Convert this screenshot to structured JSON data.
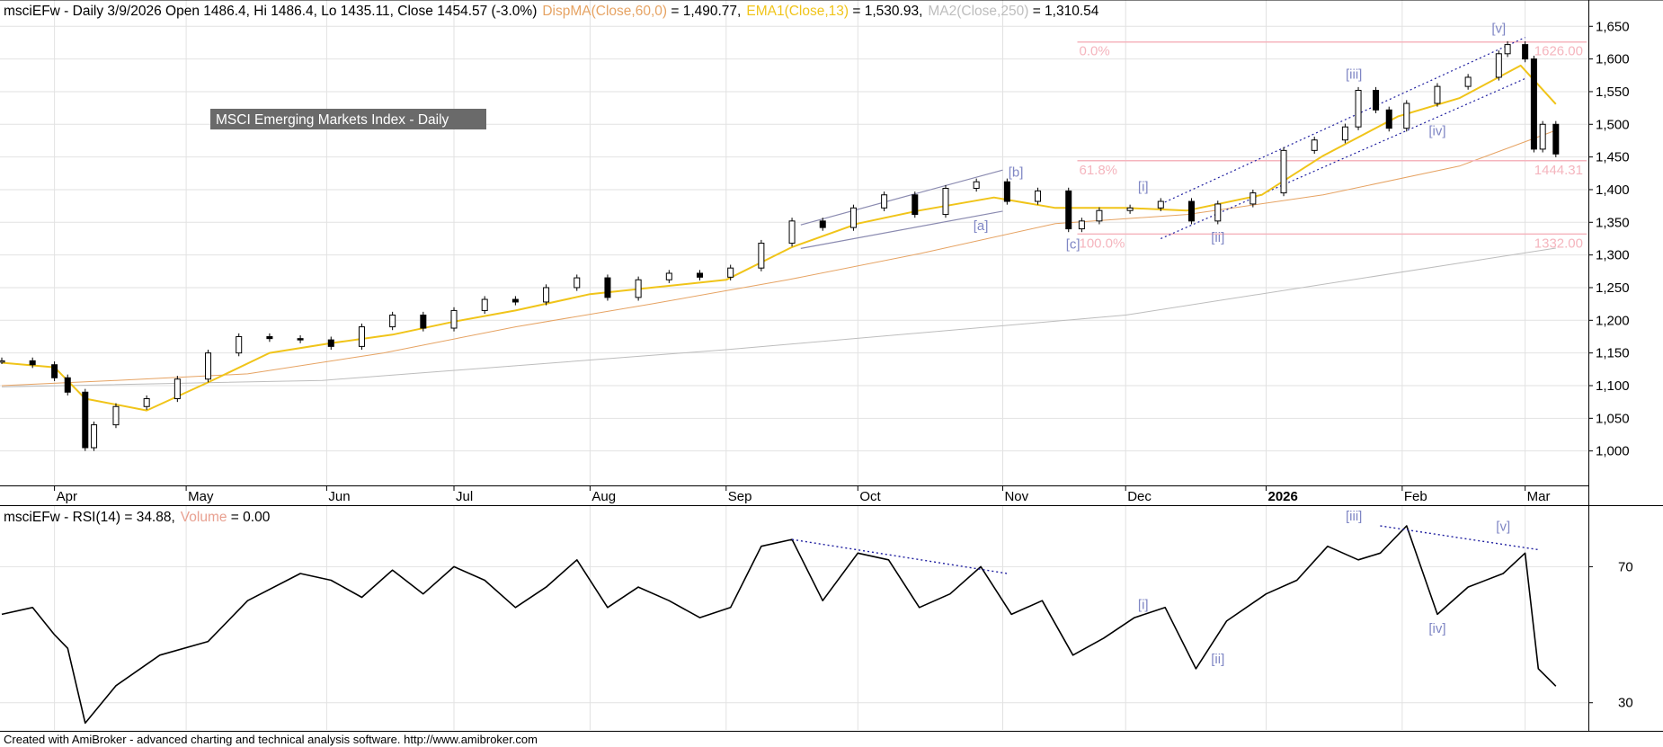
{
  "colors": {
    "background": "#ffffff",
    "grid": "#e2e2e2",
    "text": "#000000",
    "price_ma_disp": "#e6a363",
    "ema13": "#f0c419",
    "ma250": "#bdbdbd",
    "fib": "#f5b5be",
    "fib_text": "#f5b5be",
    "wave_labels": "#7f86c4",
    "trendline": "#2020a0",
    "channel": "#8a8ab0",
    "rsi_line": "#000000",
    "volume_text": "#e8a090",
    "badge_bg": "#6a6a6a",
    "badge_text": "#ffffff"
  },
  "header": {
    "price_prefix": "msciEFw - Daily 3/9/2026 Open 1486.4, Hi 1486.4, Lo 1435.11, Close 1454.57 (-3.0%)",
    "disp_ma_label": "DispMA(Close,60,0)",
    "disp_ma_value": " = 1,490.77,",
    "ema_label": "EMA1(Close,13)",
    "ema_value": " = 1,530.93,",
    "ma2_label": "MA2(Close,250)",
    "ma2_value": " = 1,310.54"
  },
  "badge": {
    "text": "MSCI Emerging Markets Index - Daily"
  },
  "rsi_header": {
    "prefix": "msciEFw - RSI(14) = 34.88,",
    "volume_label": "Volume",
    "volume_value": " = 0.00"
  },
  "footer": {
    "text": "Created with AmiBroker - advanced charting and technical analysis software. http://www.amibroker.com"
  },
  "chart_data": [
    {
      "type": "line",
      "panel": "price",
      "y_scale": "linear",
      "ylim": [
        950,
        1660
      ],
      "y_ticks": [
        1000,
        1050,
        1100,
        1150,
        1200,
        1250,
        1300,
        1350,
        1400,
        1450,
        1500,
        1550,
        1600,
        1650
      ],
      "y_tick_labels": [
        "1,000",
        "1,050",
        "1,100",
        "1,150",
        "1,200",
        "1,250",
        "1,300",
        "1,350",
        "1,400",
        "1,450",
        "1,500",
        "1,550",
        "1,600",
        "1,650"
      ],
      "x_range": [
        "2025-03-20",
        "2026-03-16"
      ],
      "x_tick_dates": [
        "2025-04-01",
        "2025-05-01",
        "2025-06-02",
        "2025-07-01",
        "2025-08-01",
        "2025-09-01",
        "2025-10-01",
        "2025-11-03",
        "2025-12-01",
        "2026-01-02",
        "2026-02-02",
        "2026-03-02"
      ],
      "x_tick_labels": [
        "Apr",
        "May",
        "Jun",
        "Jul",
        "Aug",
        "Sep",
        "Oct",
        "Nov",
        "Dec",
        "2026",
        "Feb",
        "Mar"
      ],
      "grid": true,
      "series": [
        {
          "name": "msciEFw",
          "style": "candlestick",
          "dates": [
            "2025-03-20",
            "2025-03-27",
            "2025-04-01",
            "2025-04-04",
            "2025-04-08",
            "2025-04-10",
            "2025-04-15",
            "2025-04-22",
            "2025-04-29",
            "2025-05-06",
            "2025-05-13",
            "2025-05-20",
            "2025-05-27",
            "2025-06-03",
            "2025-06-10",
            "2025-06-17",
            "2025-06-24",
            "2025-07-01",
            "2025-07-08",
            "2025-07-15",
            "2025-07-22",
            "2025-07-29",
            "2025-08-05",
            "2025-08-12",
            "2025-08-19",
            "2025-08-26",
            "2025-09-02",
            "2025-09-09",
            "2025-09-16",
            "2025-09-23",
            "2025-09-30",
            "2025-10-07",
            "2025-10-14",
            "2025-10-21",
            "2025-10-28",
            "2025-11-04",
            "2025-11-11",
            "2025-11-18",
            "2025-11-21",
            "2025-11-25",
            "2025-12-02",
            "2025-12-09",
            "2025-12-16",
            "2025-12-22",
            "2025-12-30",
            "2026-01-06",
            "2026-01-13",
            "2026-01-20",
            "2026-01-23",
            "2026-01-27",
            "2026-01-30",
            "2026-02-03",
            "2026-02-10",
            "2026-02-17",
            "2026-02-24",
            "2026-02-26",
            "2026-03-02",
            "2026-03-04",
            "2026-03-06",
            "2026-03-09"
          ],
          "close": [
            1138,
            1132,
            1112,
            1090,
            1005,
            1040,
            1068,
            1080,
            1110,
            1150,
            1175,
            1172,
            1170,
            1160,
            1190,
            1208,
            1188,
            1215,
            1232,
            1228,
            1250,
            1265,
            1235,
            1262,
            1272,
            1266,
            1280,
            1318,
            1352,
            1342,
            1372,
            1392,
            1362,
            1402,
            1412,
            1382,
            1398,
            1340,
            1352,
            1368,
            1372,
            1382,
            1352,
            1378,
            1395,
            1460,
            1476,
            1496,
            1552,
            1522,
            1494,
            1532,
            1558,
            1572,
            1608,
            1622,
            1600,
            1462,
            1500,
            1454.57
          ]
        },
        {
          "name": "DispMA(Close,60,0)",
          "dates": [
            "2025-03-20",
            "2025-04-15",
            "2025-05-15",
            "2025-06-15",
            "2025-07-15",
            "2025-08-15",
            "2025-09-15",
            "2025-10-15",
            "2025-11-15",
            "2025-12-15",
            "2026-01-15",
            "2026-02-15",
            "2026-03-09"
          ],
          "values": [
            1100,
            1108,
            1118,
            1150,
            1190,
            1225,
            1262,
            1302,
            1348,
            1362,
            1392,
            1436,
            1490.77
          ]
        },
        {
          "name": "EMA1(Close,13)",
          "dates": [
            "2025-03-20",
            "2025-04-01",
            "2025-04-08",
            "2025-04-22",
            "2025-05-06",
            "2025-05-20",
            "2025-06-03",
            "2025-06-17",
            "2025-07-01",
            "2025-07-15",
            "2025-08-01",
            "2025-08-15",
            "2025-09-01",
            "2025-09-16",
            "2025-10-01",
            "2025-10-15",
            "2025-11-01",
            "2025-11-15",
            "2025-12-01",
            "2025-12-15",
            "2026-01-01",
            "2026-01-15",
            "2026-02-01",
            "2026-02-15",
            "2026-03-01",
            "2026-03-09"
          ],
          "values": [
            1135,
            1128,
            1080,
            1062,
            1105,
            1150,
            1165,
            1178,
            1198,
            1215,
            1240,
            1250,
            1262,
            1312,
            1348,
            1368,
            1388,
            1372,
            1372,
            1368,
            1392,
            1452,
            1512,
            1540,
            1590,
            1530.93
          ]
        },
        {
          "name": "MA2(Close,250)",
          "dates": [
            "2025-03-20",
            "2025-06-01",
            "2025-09-01",
            "2025-12-01",
            "2026-03-09"
          ],
          "values": [
            1098,
            1108,
            1155,
            1208,
            1310.54
          ]
        }
      ],
      "fibonacci": [
        {
          "level_label": "0.0%",
          "price_label": "1626.00",
          "price": 1626
        },
        {
          "level_label": "61.8%",
          "price_label": "1444.31",
          "price": 1444.31
        },
        {
          "level_label": "100.0%",
          "price_label": "1332.00",
          "price": 1332
        }
      ],
      "annotations": [
        {
          "text": "[a]",
          "date": "2025-10-29",
          "price": 1338
        },
        {
          "text": "[b]",
          "date": "2025-11-06",
          "price": 1420
        },
        {
          "text": "[c]",
          "date": "2025-11-19",
          "price": 1310
        },
        {
          "text": "[i]",
          "date": "2025-12-05",
          "price": 1398
        },
        {
          "text": "[ii]",
          "date": "2025-12-22",
          "price": 1320
        },
        {
          "text": "[iii]",
          "date": "2026-01-22",
          "price": 1570
        },
        {
          "text": "[iv]",
          "date": "2026-02-10",
          "price": 1483
        },
        {
          "text": "[v]",
          "date": "2026-02-24",
          "price": 1640
        }
      ],
      "trendlines": [
        {
          "style": "solid",
          "from": [
            "2025-09-18",
            1310
          ],
          "to": [
            "2025-11-03",
            1367
          ]
        },
        {
          "style": "solid",
          "from": [
            "2025-09-18",
            1346
          ],
          "to": [
            "2025-11-03",
            1430
          ]
        },
        {
          "style": "dotted",
          "from": [
            "2025-12-09",
            1325
          ],
          "to": [
            "2026-03-02",
            1570
          ]
        },
        {
          "style": "dotted",
          "from": [
            "2025-12-09",
            1378
          ],
          "to": [
            "2026-03-02",
            1633
          ]
        }
      ]
    },
    {
      "type": "line",
      "panel": "rsi",
      "name": "RSI(14)",
      "ylim": [
        22,
        82
      ],
      "y_ticks": [
        30,
        70
      ],
      "y_tick_labels": [
        "30",
        "70"
      ],
      "grid": true,
      "dates": [
        "2025-03-20",
        "2025-03-27",
        "2025-04-01",
        "2025-04-04",
        "2025-04-08",
        "2025-04-15",
        "2025-04-25",
        "2025-05-06",
        "2025-05-15",
        "2025-05-27",
        "2025-06-03",
        "2025-06-10",
        "2025-06-17",
        "2025-06-24",
        "2025-07-01",
        "2025-07-08",
        "2025-07-15",
        "2025-07-22",
        "2025-07-29",
        "2025-08-05",
        "2025-08-12",
        "2025-08-19",
        "2025-08-26",
        "2025-09-02",
        "2025-09-09",
        "2025-09-16",
        "2025-09-23",
        "2025-10-01",
        "2025-10-08",
        "2025-10-15",
        "2025-10-22",
        "2025-10-29",
        "2025-11-05",
        "2025-11-12",
        "2025-11-19",
        "2025-11-26",
        "2025-12-03",
        "2025-12-10",
        "2025-12-17",
        "2025-12-24",
        "2026-01-02",
        "2026-01-09",
        "2026-01-16",
        "2026-01-23",
        "2026-01-28",
        "2026-02-03",
        "2026-02-10",
        "2026-02-17",
        "2026-02-25",
        "2026-03-02",
        "2026-03-05",
        "2026-03-09"
      ],
      "values": [
        56,
        58,
        50,
        46,
        24,
        35,
        44,
        48,
        60,
        68,
        66,
        61,
        69,
        62,
        70,
        66,
        58,
        64,
        72,
        58,
        64,
        60,
        55,
        58,
        76,
        78,
        60,
        74,
        72,
        58,
        62,
        70,
        56,
        60,
        44,
        49,
        55,
        58,
        40,
        54,
        62,
        66,
        76,
        72,
        74,
        82,
        56,
        64,
        68,
        74,
        40,
        34.88
      ],
      "annotations": [
        {
          "text": "[i]",
          "date": "2025-12-05",
          "value": 56
        },
        {
          "text": "[ii]",
          "date": "2025-12-22",
          "value": 40
        },
        {
          "text": "[iii]",
          "date": "2026-01-22",
          "value": 82
        },
        {
          "text": "[iv]",
          "date": "2026-02-10",
          "value": 49
        },
        {
          "text": "[v]",
          "date": "2026-02-25",
          "value": 79
        }
      ],
      "trendlines": [
        {
          "style": "dotted",
          "from": [
            "2025-09-16",
            78
          ],
          "to": [
            "2025-11-04",
            68
          ]
        },
        {
          "style": "dotted",
          "from": [
            "2026-01-28",
            82
          ],
          "to": [
            "2026-03-05",
            75
          ]
        }
      ]
    }
  ]
}
